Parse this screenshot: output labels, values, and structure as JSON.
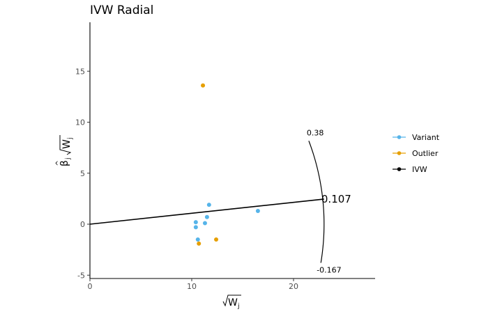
{
  "chart_data": {
    "type": "scatter",
    "title": "IVW Radial",
    "xlabel": "√W_j",
    "ylabel": "β̂_j √W_j",
    "xlim": [
      0,
      28
    ],
    "ylim": [
      -5.3,
      19.6
    ],
    "x_ticks": [
      0,
      10,
      20
    ],
    "y_ticks": [
      -5,
      0,
      5,
      10,
      15
    ],
    "grid": false,
    "legend_position": "right",
    "colors": {
      "Variant": "#56B4E9",
      "Outlier": "#E69F00",
      "IVW": "#000000"
    },
    "series": [
      {
        "name": "Variant",
        "points": [
          {
            "x": 10.4,
            "y": 0.2
          },
          {
            "x": 10.4,
            "y": -0.3
          },
          {
            "x": 10.6,
            "y": -1.5
          },
          {
            "x": 11.3,
            "y": 0.1
          },
          {
            "x": 11.5,
            "y": 0.7
          },
          {
            "x": 11.7,
            "y": 1.9
          },
          {
            "x": 16.5,
            "y": 1.3
          }
        ]
      },
      {
        "name": "Outlier",
        "points": [
          {
            "x": 11.1,
            "y": 13.6
          },
          {
            "x": 10.7,
            "y": -1.9
          },
          {
            "x": 12.4,
            "y": -1.5
          }
        ]
      },
      {
        "name": "IVW",
        "line": {
          "slope": 0.107,
          "x0": 0,
          "x1": 23.0
        }
      }
    ],
    "annotations": {
      "estimate": "0.107",
      "ci_upper": "0.38",
      "ci_lower": "-0.167"
    },
    "ci_slopes": [
      0.38,
      -0.167
    ],
    "arc_radius": 23.0
  }
}
